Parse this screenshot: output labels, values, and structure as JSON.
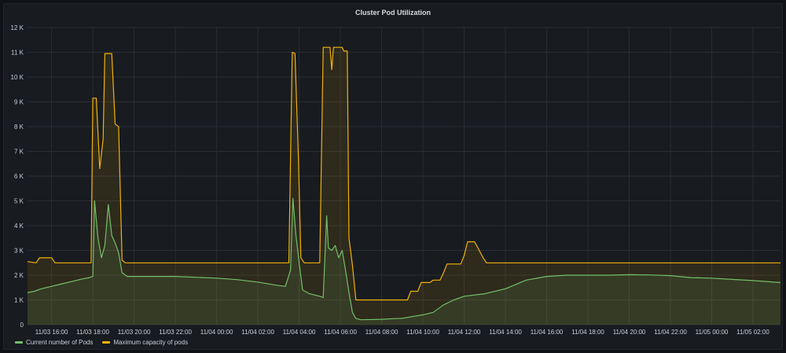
{
  "panel": {
    "title": "Cluster Pod Utilization"
  },
  "colors": {
    "current": "#73bf69",
    "max": "#f2b20c",
    "grid": "#2a2d33",
    "background": "#181b1f"
  },
  "chart_data": {
    "type": "line",
    "title": "Cluster Pod Utilization",
    "x_range": [
      "11/03 14:50",
      "11/05 03:20"
    ],
    "ylim": [
      0,
      12000
    ],
    "yticks": [
      0,
      1000,
      2000,
      3000,
      4000,
      5000,
      6000,
      7000,
      8000,
      9000,
      10000,
      11000,
      12000
    ],
    "ytick_labels": [
      "0",
      "1 K",
      "2 K",
      "3 K",
      "4 K",
      "5 K",
      "6 K",
      "7 K",
      "8 K",
      "9 K",
      "10 K",
      "11 K",
      "12 K"
    ],
    "xtick_labels": [
      "11/03 16:00",
      "11/03 18:00",
      "11/03 20:00",
      "11/03 22:00",
      "11/04 00:00",
      "11/04 02:00",
      "11/04 04:00",
      "11/04 06:00",
      "11/04 08:00",
      "11/04 10:00",
      "11/04 12:00",
      "11/04 14:00",
      "11/04 16:00",
      "11/04 18:00",
      "11/04 20:00",
      "11/04 22:00",
      "11/05 00:00",
      "11/05 02:00"
    ],
    "grid": true,
    "legend_position": "bottom-left",
    "series": [
      {
        "name": "Current number of Pods",
        "color": "#73bf69",
        "fill": true,
        "points": [
          [
            "11/03 14:50",
            1300
          ],
          [
            "11/03 15:10",
            1350
          ],
          [
            "11/03 15:30",
            1450
          ],
          [
            "11/03 16:00",
            1550
          ],
          [
            "11/03 16:30",
            1650
          ],
          [
            "11/03 17:00",
            1750
          ],
          [
            "11/03 17:30",
            1850
          ],
          [
            "11/03 17:50",
            1900
          ],
          [
            "11/03 18:00",
            1950
          ],
          [
            "11/03 18:05",
            5000
          ],
          [
            "11/03 18:15",
            3500
          ],
          [
            "11/03 18:25",
            2700
          ],
          [
            "11/03 18:35",
            3200
          ],
          [
            "11/03 18:45",
            4850
          ],
          [
            "11/03 18:55",
            3600
          ],
          [
            "11/03 19:05",
            3300
          ],
          [
            "11/03 19:15",
            2900
          ],
          [
            "11/03 19:25",
            2100
          ],
          [
            "11/03 19:40",
            1950
          ],
          [
            "11/03 20:00",
            1950
          ],
          [
            "11/03 22:00",
            1950
          ],
          [
            "11/04 00:00",
            1880
          ],
          [
            "11/04 01:00",
            1820
          ],
          [
            "11/04 02:00",
            1720
          ],
          [
            "11/04 03:00",
            1580
          ],
          [
            "11/04 03:20",
            1550
          ],
          [
            "11/04 03:35",
            2200
          ],
          [
            "11/04 03:42",
            5100
          ],
          [
            "11/04 03:50",
            3700
          ],
          [
            "11/04 04:00",
            2500
          ],
          [
            "11/04 04:10",
            1400
          ],
          [
            "11/04 04:30",
            1250
          ],
          [
            "11/04 05:00",
            1150
          ],
          [
            "11/04 05:10",
            1100
          ],
          [
            "11/04 05:20",
            4400
          ],
          [
            "11/04 05:25",
            3100
          ],
          [
            "11/04 05:35",
            3000
          ],
          [
            "11/04 05:45",
            3200
          ],
          [
            "11/04 05:55",
            2700
          ],
          [
            "11/04 06:05",
            3000
          ],
          [
            "11/04 06:15",
            2200
          ],
          [
            "11/04 06:25",
            1300
          ],
          [
            "11/04 06:35",
            500
          ],
          [
            "11/04 06:45",
            250
          ],
          [
            "11/04 07:00",
            200
          ],
          [
            "11/04 08:00",
            220
          ],
          [
            "11/04 09:00",
            260
          ],
          [
            "11/04 10:00",
            400
          ],
          [
            "11/04 10:30",
            500
          ],
          [
            "11/04 11:00",
            800
          ],
          [
            "11/04 11:30",
            1000
          ],
          [
            "11/04 12:00",
            1150
          ],
          [
            "11/04 13:00",
            1250
          ],
          [
            "11/04 14:00",
            1450
          ],
          [
            "11/04 15:00",
            1800
          ],
          [
            "11/04 16:00",
            1950
          ],
          [
            "11/04 17:00",
            2000
          ],
          [
            "11/04 18:00",
            2000
          ],
          [
            "11/04 19:00",
            2000
          ],
          [
            "11/04 20:00",
            2020
          ],
          [
            "11/04 21:00",
            2010
          ],
          [
            "11/04 22:00",
            1980
          ],
          [
            "11/04 23:00",
            1900
          ],
          [
            "11/05 00:00",
            1880
          ],
          [
            "11/05 01:00",
            1830
          ],
          [
            "11/05 02:00",
            1780
          ],
          [
            "11/05 03:20",
            1700
          ]
        ]
      },
      {
        "name": "Maximum capacity of pods",
        "color": "#f2b20c",
        "fill": true,
        "points": [
          [
            "11/03 14:50",
            2550
          ],
          [
            "11/03 15:15",
            2500
          ],
          [
            "11/03 15:25",
            2700
          ],
          [
            "11/03 16:00",
            2700
          ],
          [
            "11/03 16:10",
            2500
          ],
          [
            "11/03 17:55",
            2500
          ],
          [
            "11/03 18:00",
            9150
          ],
          [
            "11/03 18:10",
            9150
          ],
          [
            "11/03 18:20",
            6300
          ],
          [
            "11/03 18:30",
            7500
          ],
          [
            "11/03 18:35",
            10950
          ],
          [
            "11/03 18:55",
            10950
          ],
          [
            "11/03 19:05",
            8100
          ],
          [
            "11/03 19:15",
            8000
          ],
          [
            "11/03 19:25",
            2600
          ],
          [
            "11/03 19:35",
            2500
          ],
          [
            "11/04 03:30",
            2500
          ],
          [
            "11/04 03:40",
            11000
          ],
          [
            "11/04 03:48",
            10950
          ],
          [
            "11/04 03:58",
            6700
          ],
          [
            "11/04 04:05",
            2700
          ],
          [
            "11/04 04:15",
            2500
          ],
          [
            "11/04 05:00",
            2500
          ],
          [
            "11/04 05:10",
            11200
          ],
          [
            "11/04 05:30",
            11200
          ],
          [
            "11/04 05:35",
            10300
          ],
          [
            "11/04 05:40",
            11200
          ],
          [
            "11/04 06:05",
            11200
          ],
          [
            "11/04 06:10",
            11050
          ],
          [
            "11/04 06:20",
            11050
          ],
          [
            "11/04 06:25",
            3500
          ],
          [
            "11/04 06:35",
            2400
          ],
          [
            "11/04 06:45",
            1000
          ],
          [
            "11/04 09:15",
            1000
          ],
          [
            "11/04 09:25",
            1350
          ],
          [
            "11/04 09:45",
            1350
          ],
          [
            "11/04 09:55",
            1700
          ],
          [
            "11/04 10:20",
            1700
          ],
          [
            "11/04 10:30",
            1800
          ],
          [
            "11/04 10:50",
            1800
          ],
          [
            "11/04 11:00",
            2100
          ],
          [
            "11/04 11:10",
            2450
          ],
          [
            "11/04 11:50",
            2450
          ],
          [
            "11/04 12:00",
            2800
          ],
          [
            "11/04 12:10",
            3350
          ],
          [
            "11/04 12:30",
            3350
          ],
          [
            "11/04 12:40",
            3100
          ],
          [
            "11/04 12:55",
            2700
          ],
          [
            "11/04 13:05",
            2500
          ],
          [
            "11/05 03:20",
            2500
          ]
        ]
      }
    ]
  }
}
